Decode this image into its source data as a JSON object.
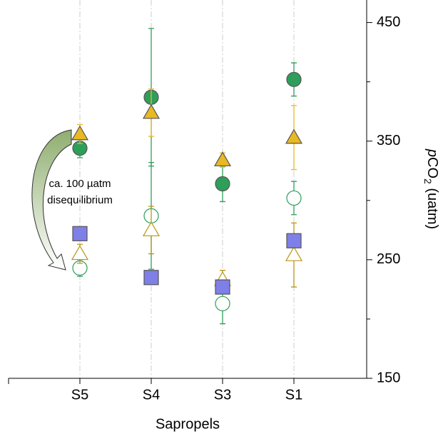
{
  "chart_data": {
    "type": "scatter",
    "categories": [
      "S5",
      "S4",
      "S3",
      "S1"
    ],
    "x_label": "Sapropels",
    "y_label": {
      "italic": "p",
      "main": "CO",
      "sub": "2",
      "rest": " (uatm)"
    },
    "ylim": [
      150,
      469
    ],
    "yticks": [
      150,
      250,
      350,
      450
    ],
    "yminor_ticks": [
      200,
      300,
      400
    ],
    "grid": true,
    "annotation": [
      "ca. 100 µatm",
      "disequilibrium"
    ],
    "series": [
      {
        "marker": "circle",
        "filled": true,
        "color": "#2e9e5b",
        "values": [
          344,
          387,
          314,
          402
        ],
        "errors": [
          8,
          58,
          15,
          14
        ]
      },
      {
        "marker": "triangle",
        "filled": true,
        "color": "#e8b923",
        "values": [
          356,
          374,
          334,
          353
        ],
        "errors": [
          8,
          20,
          6,
          27
        ]
      },
      {
        "marker": "circle",
        "filled": false,
        "color": "#2e9e5b",
        "values": [
          243,
          287,
          213,
          302
        ],
        "errors": [
          7,
          45,
          17,
          14
        ]
      },
      {
        "marker": "triangle",
        "filled": false,
        "color": "#b8961a",
        "values": [
          255,
          275,
          233,
          254
        ],
        "errors": [
          8,
          20,
          8,
          27
        ]
      },
      {
        "marker": "square",
        "filled": true,
        "color": "#7f7fe8",
        "values": [
          272,
          235,
          227,
          266
        ]
      }
    ]
  }
}
